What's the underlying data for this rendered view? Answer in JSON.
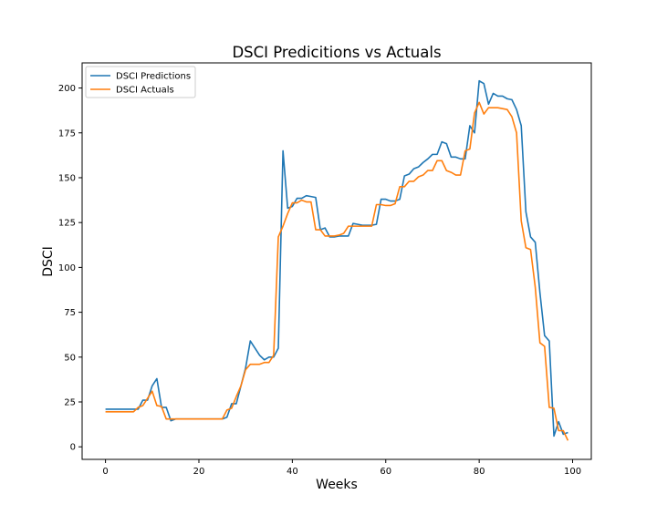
{
  "chart_data": {
    "type": "line",
    "title": "DSCI Predicitions vs Actuals",
    "xlabel": "Weeks",
    "ylabel": "DSCI",
    "xlim": [
      -5,
      104
    ],
    "ylim": [
      -7,
      214
    ],
    "xticks": [
      0,
      20,
      40,
      60,
      80,
      100
    ],
    "yticks": [
      0,
      25,
      50,
      75,
      100,
      125,
      150,
      175,
      200
    ],
    "grid": false,
    "legend_position": "upper-left",
    "x": [
      0,
      1,
      2,
      3,
      4,
      5,
      6,
      7,
      8,
      9,
      10,
      11,
      12,
      13,
      14,
      15,
      16,
      17,
      18,
      19,
      20,
      21,
      22,
      23,
      24,
      25,
      26,
      27,
      28,
      29,
      30,
      31,
      32,
      33,
      34,
      35,
      36,
      37,
      38,
      39,
      40,
      41,
      42,
      43,
      44,
      45,
      46,
      47,
      48,
      49,
      50,
      51,
      52,
      53,
      54,
      55,
      56,
      57,
      58,
      59,
      60,
      61,
      62,
      63,
      64,
      65,
      66,
      67,
      68,
      69,
      70,
      71,
      72,
      73,
      74,
      75,
      76,
      77,
      78,
      79,
      80,
      81,
      82,
      83,
      84,
      85,
      86,
      87,
      88,
      89,
      90,
      91,
      92,
      93,
      94,
      95,
      96,
      97,
      98,
      99
    ],
    "series": [
      {
        "name": "DSCI Predictions",
        "color": "#1f77b4",
        "values": [
          21,
          21,
          21,
          21,
          21,
          21,
          21,
          21,
          26,
          26,
          34,
          38,
          22,
          22,
          14.5,
          15.5,
          15.5,
          15.5,
          15.5,
          15.5,
          15.5,
          15.5,
          15.5,
          15.5,
          15.5,
          15.5,
          16.5,
          24,
          24,
          34,
          44,
          59,
          55,
          51,
          48.5,
          50,
          50,
          55,
          165,
          133,
          134,
          138.5,
          138.5,
          140,
          139.5,
          139,
          121,
          122,
          117,
          117,
          117.5,
          117.5,
          117.5,
          124.5,
          124,
          123.5,
          123.5,
          123.5,
          124,
          138,
          138,
          137,
          137,
          138,
          151,
          152,
          155,
          156,
          158.5,
          160.5,
          163,
          163,
          170,
          169,
          161.5,
          161.5,
          160.5,
          160.5,
          179,
          175,
          204,
          202.5,
          191,
          197,
          195.5,
          195.5,
          194,
          193.5,
          188,
          179,
          131,
          117,
          114,
          86,
          62,
          59,
          6,
          14,
          7,
          8
        ]
      },
      {
        "name": "DSCI Actuals",
        "color": "#ff7f0e",
        "values": [
          19.5,
          19.5,
          19.5,
          19.5,
          19.5,
          19.5,
          19.5,
          22,
          23,
          27,
          31,
          23,
          22.5,
          15.5,
          15.5,
          15.5,
          15.5,
          15.5,
          15.5,
          15.5,
          15.5,
          15.5,
          15.5,
          15.5,
          15.5,
          15.5,
          20.5,
          21.5,
          28,
          34,
          43,
          46,
          46,
          46,
          47,
          47,
          51,
          117,
          123,
          130,
          136,
          136,
          137.5,
          136.5,
          136.5,
          121,
          121,
          117.5,
          117.5,
          117.5,
          118,
          119,
          123,
          123,
          123,
          123,
          123,
          123,
          135,
          135,
          134.5,
          134.5,
          135.5,
          145,
          145,
          148,
          148,
          150.5,
          151.5,
          154,
          154,
          159.5,
          159.5,
          154,
          153,
          151.5,
          151.5,
          165,
          166,
          186,
          192,
          185.5,
          189,
          189,
          189,
          188.5,
          188,
          184,
          175,
          126,
          111,
          110,
          89,
          58,
          56,
          22,
          21.5,
          9,
          9,
          3.5
        ]
      }
    ]
  }
}
